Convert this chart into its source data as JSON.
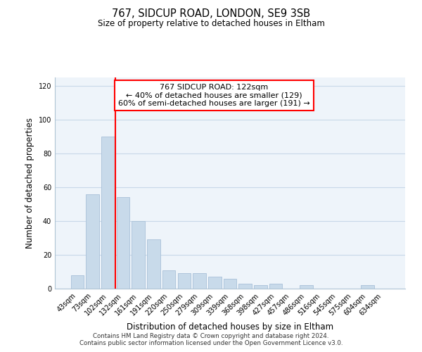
{
  "title1": "767, SIDCUP ROAD, LONDON, SE9 3SB",
  "title2": "Size of property relative to detached houses in Eltham",
  "xlabel": "Distribution of detached houses by size in Eltham",
  "ylabel": "Number of detached properties",
  "bar_labels": [
    "43sqm",
    "73sqm",
    "102sqm",
    "132sqm",
    "161sqm",
    "191sqm",
    "220sqm",
    "250sqm",
    "279sqm",
    "309sqm",
    "339sqm",
    "368sqm",
    "398sqm",
    "427sqm",
    "457sqm",
    "486sqm",
    "516sqm",
    "545sqm",
    "575sqm",
    "604sqm",
    "634sqm"
  ],
  "bar_values": [
    8,
    56,
    90,
    54,
    40,
    29,
    11,
    9,
    9,
    7,
    6,
    3,
    2,
    3,
    0,
    2,
    0,
    0,
    0,
    2,
    0
  ],
  "bar_color": "#c8daea",
  "bar_edge_color": "#a8c0d8",
  "vline_color": "red",
  "vline_index": 2.5,
  "annotation_title": "767 SIDCUP ROAD: 122sqm",
  "annotation_line1": "← 40% of detached houses are smaller (129)",
  "annotation_line2": "60% of semi-detached houses are larger (191) →",
  "annotation_box_color": "white",
  "annotation_box_edge": "red",
  "ylim": [
    0,
    125
  ],
  "yticks": [
    0,
    20,
    40,
    60,
    80,
    100,
    120
  ],
  "grid_color": "#c8d8e8",
  "footer1": "Contains HM Land Registry data © Crown copyright and database right 2024.",
  "footer2": "Contains public sector information licensed under the Open Government Licence v3.0.",
  "bg_color": "#eef4fa"
}
